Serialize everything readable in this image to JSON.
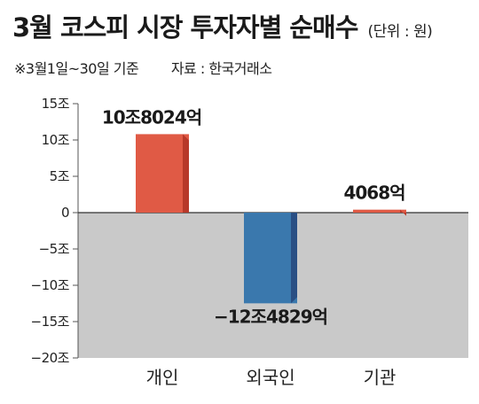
{
  "chart_data": {
    "type": "bar",
    "title": "3월 코스피 시장 투자자별 순매수",
    "unit": "(단위 : 원)",
    "period_note": "※3월1일~30일 기준",
    "source": "자료 : 한국거래소",
    "categories": [
      "개인",
      "외국인",
      "기관"
    ],
    "values_trillion_won": [
      10.8024,
      -12.4829,
      0.4068
    ],
    "value_labels": [
      "10조8024억",
      "−12조4829억",
      "4068억"
    ],
    "ylim": [
      -20,
      15
    ],
    "yticks": [
      15,
      10,
      5,
      0,
      -5,
      -10,
      -15,
      -20
    ],
    "ytick_labels": [
      "15조",
      "10조",
      "5조",
      "0",
      "−5조",
      "−10조",
      "−15조",
      "−20조"
    ],
    "bar_colors": [
      "#e05a45",
      "#3a78ad",
      "#e05a45"
    ],
    "bar_side_colors": [
      "#b7392a",
      "#2a4f84",
      "#b7392a"
    ],
    "negative_region_color": "#c9c9c9",
    "grid": false
  }
}
